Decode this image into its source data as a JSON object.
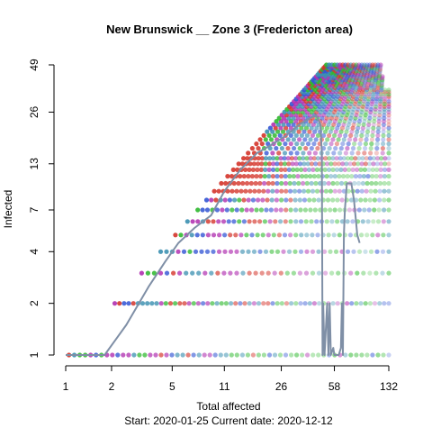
{
  "chart_data": {
    "type": "scatter",
    "title": "New Brunswick __ Zone 3 (Fredericton area)",
    "xlabel": "Total affected",
    "ylabel": "Infected",
    "x_scale": "log",
    "y_scale": "log",
    "x_ticks": [
      1,
      2,
      5,
      11,
      26,
      58,
      132
    ],
    "y_ticks": [
      1,
      2,
      4,
      7,
      13,
      26,
      49
    ],
    "xlim": [
      1,
      132
    ],
    "ylim": [
      1,
      49
    ],
    "grid": false,
    "legend": "none",
    "footer": "Start:  2020-01-25   Current date:  2020-12-12",
    "observed_series": {
      "color": "#7f8fa6",
      "x": [
        1,
        1.8,
        2.5,
        3.5,
        4.5,
        5.5,
        7,
        9,
        11,
        14,
        18,
        23,
        28,
        34,
        40,
        44,
        47,
        48,
        48.5,
        49,
        50,
        52,
        53,
        54,
        55,
        57,
        58,
        60,
        62,
        64,
        65,
        66,
        67,
        68,
        70,
        72,
        75,
        78,
        82,
        85
      ],
      "y": [
        1,
        1,
        1.5,
        2.5,
        3.5,
        4.5,
        5.5,
        6.5,
        9,
        12,
        15,
        17,
        19,
        22,
        24,
        25,
        22,
        15,
        1,
        2,
        1,
        2,
        1,
        2,
        1,
        1.1,
        1,
        1,
        1,
        1.1,
        2,
        1,
        5,
        7,
        10,
        10,
        10,
        8,
        5,
        4.5
      ]
    },
    "simulation_cloud": {
      "description_colors": [
        "#d4342a",
        "#2db82d",
        "#3355d4",
        "#b030b0",
        "#3a8fb0"
      ],
      "x_max": 132,
      "y_max": 49
    }
  }
}
